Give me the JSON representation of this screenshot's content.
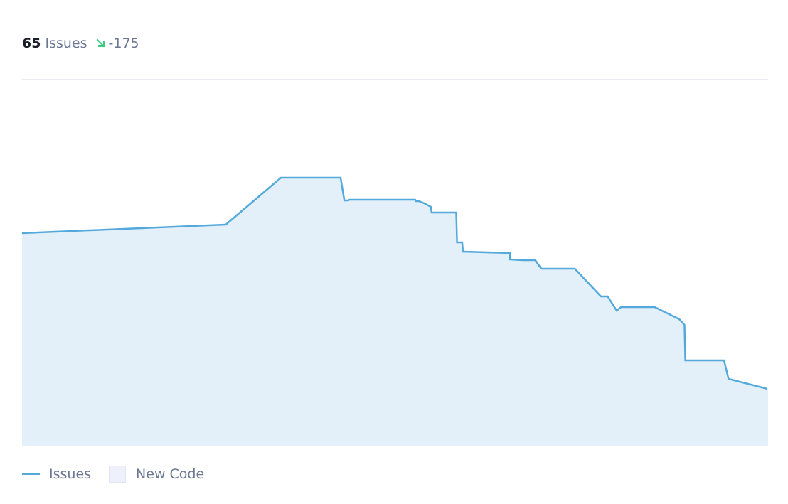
{
  "summary": {
    "count": "65",
    "label": "Issues",
    "delta": "-175",
    "trend_icon": "arrow-down-right-icon",
    "trend_color": "#3ccb7f"
  },
  "legend": {
    "issues": "Issues",
    "new_code": "New Code"
  },
  "colors": {
    "line": "#54a9dc",
    "area": "#e4f0f9",
    "new_code": "#eef0fb"
  },
  "chart_data": {
    "type": "area",
    "title": "",
    "xlabel": "",
    "ylabel": "",
    "grid": false,
    "legend_position": "bottom-left",
    "xlim": [
      0,
      1000
    ],
    "ylim": [
      0,
      390
    ],
    "series": [
      {
        "name": "Issues",
        "points": [
          [
            0,
            300
          ],
          [
            273,
            312
          ],
          [
            347,
            378
          ],
          [
            427,
            378
          ],
          [
            432,
            346
          ],
          [
            437,
            346
          ],
          [
            439,
            347
          ],
          [
            527,
            347
          ],
          [
            528,
            345
          ],
          [
            532,
            345
          ],
          [
            539,
            342
          ],
          [
            548,
            337
          ],
          [
            549,
            329
          ],
          [
            582,
            329
          ],
          [
            583,
            287
          ],
          [
            590,
            287
          ],
          [
            591,
            274
          ],
          [
            654,
            272
          ],
          [
            654,
            263
          ],
          [
            671,
            262
          ],
          [
            688,
            262
          ],
          [
            696,
            250
          ],
          [
            741,
            250
          ],
          [
            776,
            211
          ],
          [
            785,
            211
          ],
          [
            797,
            191
          ],
          [
            803,
            196
          ],
          [
            848,
            196
          ],
          [
            881,
            179
          ],
          [
            888,
            171
          ],
          [
            889,
            121
          ],
          [
            941,
            121
          ],
          [
            947,
            95
          ],
          [
            999,
            81
          ]
        ]
      }
    ]
  }
}
